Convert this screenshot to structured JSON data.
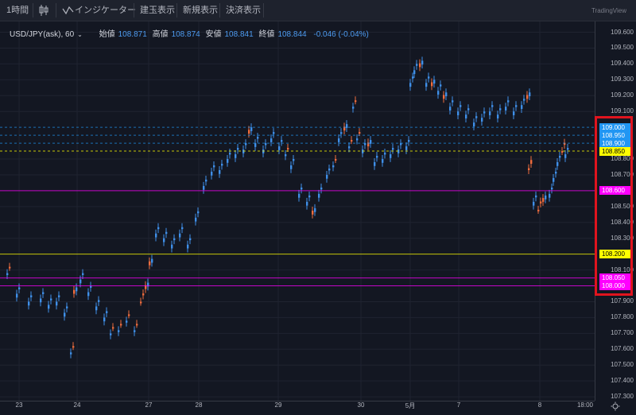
{
  "toolbar": {
    "interval": "1時間",
    "candle_icon": "candlestick-icon",
    "indicators": "インジケーター",
    "position_display": "建玉表示",
    "new_order_display": "新規表示",
    "settlement_display": "決済表示",
    "brand": "TradingView"
  },
  "legend": {
    "symbol": "USD/JPY(ask), 60",
    "open_label": "始値",
    "open": "108.871",
    "high_label": "高値",
    "high": "108.874",
    "low_label": "安値",
    "low": "108.841",
    "close_label": "終値",
    "close": "108.844",
    "change": "-0.046 (-0.04%)"
  },
  "price_axis": {
    "ticks": [
      "109.600",
      "109.500",
      "109.400",
      "109.300",
      "109.200",
      "109.100",
      "108.800",
      "108.700",
      "108.500",
      "108.400",
      "108.300",
      "108.100",
      "107.900",
      "107.800",
      "107.700",
      "107.600",
      "107.500",
      "107.400",
      "107.300"
    ]
  },
  "time_axis": {
    "labels": [
      "23",
      "24",
      "27",
      "28",
      "29",
      "30",
      "5月",
      "7",
      "8",
      "18:00"
    ]
  },
  "horizontal_lines": [
    {
      "label": "109.000",
      "price": 109.0,
      "color": "#2196f3",
      "style": "dashed",
      "text_color": "#ffffff"
    },
    {
      "label": "108.950",
      "price": 108.95,
      "color": "#2196f3",
      "style": "dashed",
      "text_color": "#ffffff"
    },
    {
      "label": "108.900",
      "price": 108.9,
      "color": "#2196f3",
      "style": "dashed",
      "text_color": "#ffffff"
    },
    {
      "label": "108.850",
      "price": 108.85,
      "color": "#ffff00",
      "style": "dashed",
      "text_color": "#000000"
    },
    {
      "label": "108.600",
      "price": 108.6,
      "color": "#ff00ff",
      "style": "solid",
      "text_color": "#ffffff"
    },
    {
      "label": "108.200",
      "price": 108.2,
      "color": "#ffff00",
      "style": "solid",
      "text_color": "#000000"
    },
    {
      "label": "108.050",
      "price": 108.05,
      "color": "#ff00ff",
      "style": "solid",
      "text_color": "#ffffff"
    },
    {
      "label": "108.000",
      "price": 108.0,
      "color": "#ff00ff",
      "style": "solid",
      "text_color": "#ffffff"
    }
  ],
  "colors": {
    "up": "#ef6c3d",
    "down": "#3f8fe8",
    "background": "#131722",
    "highlight": "#e0141e"
  }
}
